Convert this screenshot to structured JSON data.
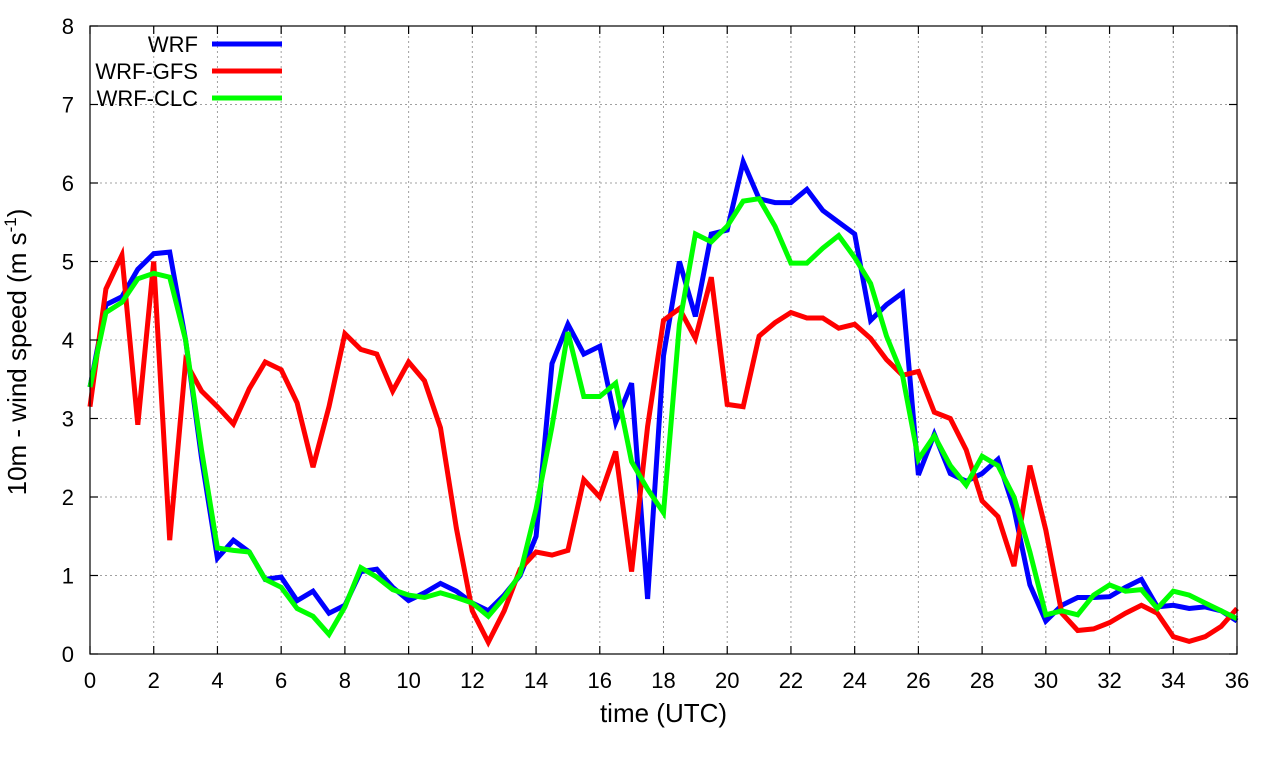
{
  "chart_data": {
    "type": "line",
    "xlabel": "time (UTC)",
    "ylabel_main": "10m - wind speed  (m s",
    "ylabel_sup": "-1",
    "ylabel_tail": ")",
    "xlim": [
      0,
      36
    ],
    "ylim": [
      0,
      8
    ],
    "xticks": [
      0,
      2,
      4,
      6,
      8,
      10,
      12,
      14,
      16,
      18,
      20,
      22,
      24,
      26,
      28,
      30,
      32,
      34,
      36
    ],
    "yticks": [
      0,
      1,
      2,
      3,
      4,
      5,
      6,
      7,
      8
    ],
    "grid": true,
    "legend_position": "top-left",
    "series": [
      {
        "name": "WRF",
        "color": "#0000ff",
        "x": [
          0,
          0.5,
          1,
          1.5,
          2,
          2.5,
          3,
          3.5,
          4,
          4.5,
          5,
          5.5,
          6,
          6.5,
          7,
          7.5,
          8,
          8.5,
          9,
          9.5,
          10,
          10.5,
          11,
          11.5,
          12,
          12.5,
          13,
          13.5,
          14,
          14.5,
          15,
          15.5,
          16,
          16.5,
          17,
          17.5,
          18,
          18.5,
          19,
          19.5,
          20,
          20.5,
          21,
          21.5,
          22,
          22.5,
          23,
          23.5,
          24,
          24.5,
          25,
          25.5,
          26,
          26.5,
          27,
          27.5,
          28,
          28.5,
          29,
          29.5,
          30,
          30.5,
          31,
          31.5,
          32,
          32.5,
          33,
          33.5,
          34,
          34.5,
          35,
          35.5,
          36
        ],
        "y": [
          3.4,
          4.45,
          4.55,
          4.9,
          5.1,
          5.12,
          4.0,
          2.5,
          1.22,
          1.45,
          1.3,
          0.95,
          0.98,
          0.68,
          0.8,
          0.52,
          0.62,
          1.05,
          1.08,
          0.85,
          0.68,
          0.78,
          0.9,
          0.8,
          0.65,
          0.55,
          0.75,
          1.0,
          1.5,
          3.7,
          4.2,
          3.82,
          3.92,
          2.95,
          3.45,
          0.7,
          3.8,
          5.0,
          4.3,
          5.35,
          5.4,
          6.27,
          5.8,
          5.75,
          5.75,
          5.92,
          5.65,
          5.5,
          5.35,
          4.25,
          4.45,
          4.6,
          2.28,
          2.8,
          2.3,
          2.2,
          2.3,
          2.48,
          1.85,
          0.88,
          0.42,
          0.62,
          0.72,
          0.72,
          0.73,
          0.85,
          0.95,
          0.6,
          0.62,
          0.58,
          0.6,
          0.55,
          0.42
        ]
      },
      {
        "name": "WRF-GFS",
        "color": "#ff0000",
        "x": [
          0,
          0.5,
          1,
          1.5,
          2,
          2.5,
          3,
          3.5,
          4,
          4.5,
          5,
          5.5,
          6,
          6.5,
          7,
          7.5,
          8,
          8.5,
          9,
          9.5,
          10,
          10.5,
          11,
          11.5,
          12,
          12.5,
          13,
          13.5,
          14,
          14.5,
          15,
          15.5,
          16,
          16.5,
          17,
          17.5,
          18,
          18.5,
          19,
          19.5,
          20,
          20.5,
          21,
          21.5,
          22,
          22.5,
          23,
          23.5,
          24,
          24.5,
          25,
          25.5,
          26,
          26.5,
          27,
          27.5,
          28,
          28.5,
          29,
          29.5,
          30,
          30.5,
          31,
          31.5,
          32,
          32.5,
          33,
          33.5,
          34,
          34.5,
          35,
          35.5,
          36
        ],
        "y": [
          3.15,
          4.65,
          5.08,
          2.92,
          5.0,
          1.45,
          3.72,
          3.35,
          3.15,
          2.93,
          3.38,
          3.72,
          3.62,
          3.2,
          2.38,
          3.15,
          4.08,
          3.88,
          3.82,
          3.35,
          3.72,
          3.48,
          2.88,
          1.6,
          0.55,
          0.15,
          0.55,
          1.08,
          1.3,
          1.26,
          1.32,
          2.22,
          2.0,
          2.58,
          1.05,
          2.9,
          4.25,
          4.4,
          4.02,
          4.8,
          3.18,
          3.15,
          4.05,
          4.22,
          4.35,
          4.28,
          4.28,
          4.15,
          4.2,
          4.02,
          3.75,
          3.55,
          3.6,
          3.08,
          3.0,
          2.6,
          1.95,
          1.75,
          1.12,
          2.4,
          1.58,
          0.52,
          0.3,
          0.32,
          0.4,
          0.52,
          0.62,
          0.52,
          0.22,
          0.16,
          0.22,
          0.35,
          0.58
        ]
      },
      {
        "name": "WRF-CLC",
        "color": "#00ff00",
        "x": [
          0,
          0.5,
          1,
          1.5,
          2,
          2.5,
          3,
          3.5,
          4,
          4.5,
          5,
          5.5,
          6,
          6.5,
          7,
          7.5,
          8,
          8.5,
          9,
          9.5,
          10,
          10.5,
          11,
          11.5,
          12,
          12.5,
          13,
          13.5,
          14,
          14.5,
          15,
          15.5,
          16,
          16.5,
          17,
          17.5,
          18,
          18.5,
          19,
          19.5,
          20,
          20.5,
          21,
          21.5,
          22,
          22.5,
          23,
          23.5,
          24,
          24.5,
          25,
          25.5,
          26,
          26.5,
          27,
          27.5,
          28,
          28.5,
          29,
          29.5,
          30,
          30.5,
          31,
          31.5,
          32,
          32.5,
          33,
          33.5,
          34,
          34.5,
          35,
          35.5,
          36
        ],
        "y": [
          3.4,
          4.35,
          4.48,
          4.78,
          4.85,
          4.8,
          4.0,
          2.6,
          1.35,
          1.32,
          1.3,
          0.95,
          0.85,
          0.58,
          0.48,
          0.25,
          0.6,
          1.1,
          0.98,
          0.82,
          0.75,
          0.72,
          0.78,
          0.72,
          0.65,
          0.48,
          0.72,
          1.02,
          1.85,
          2.9,
          4.1,
          3.28,
          3.28,
          3.45,
          2.45,
          2.1,
          1.8,
          4.2,
          5.35,
          5.25,
          5.45,
          5.77,
          5.8,
          5.45,
          4.98,
          4.98,
          5.17,
          5.33,
          5.05,
          4.72,
          4.05,
          3.55,
          2.48,
          2.78,
          2.4,
          2.15,
          2.52,
          2.4,
          2.0,
          1.3,
          0.5,
          0.55,
          0.5,
          0.75,
          0.88,
          0.8,
          0.82,
          0.58,
          0.8,
          0.75,
          0.65,
          0.55,
          0.45
        ]
      }
    ]
  }
}
